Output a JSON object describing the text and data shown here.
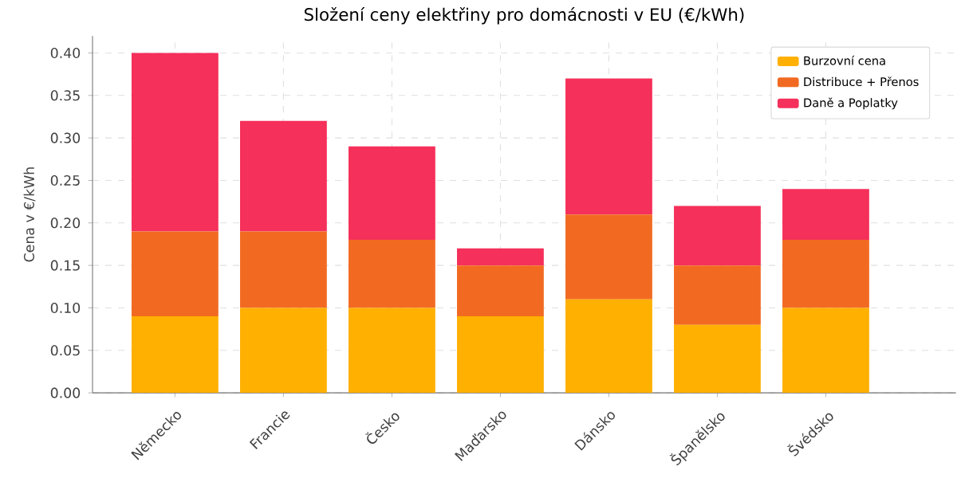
{
  "chart_data": {
    "type": "bar",
    "stacked": true,
    "title": "Složení ceny elektřiny pro domácnosti v EU (€/kWh)",
    "ylabel": "Cena v €/kWh",
    "categories": [
      "Německo",
      "Francie",
      "Česko",
      "Maďarsko",
      "Dánsko",
      "Španělsko",
      "Švédsko"
    ],
    "series": [
      {
        "name": "Burzovní cena",
        "color": "#ffb000",
        "values": [
          0.09,
          0.1,
          0.1,
          0.09,
          0.11,
          0.08,
          0.1
        ]
      },
      {
        "name": "Distribuce + Přenos",
        "color": "#f26a22",
        "values": [
          0.1,
          0.09,
          0.08,
          0.06,
          0.1,
          0.07,
          0.08
        ]
      },
      {
        "name": "Daně a Poplatky",
        "color": "#f5305a",
        "values": [
          0.21,
          0.13,
          0.11,
          0.02,
          0.16,
          0.07,
          0.06
        ]
      }
    ],
    "ylim": [
      0,
      0.42
    ],
    "yticks": [
      {
        "value": 0,
        "label": "0.00"
      },
      {
        "value": 0.05,
        "label": "0.05"
      },
      {
        "value": 0.1,
        "label": "0.10"
      },
      {
        "value": 0.15,
        "label": "0.15"
      },
      {
        "value": 0.2,
        "label": "0.20"
      },
      {
        "value": 0.25,
        "label": "0.25"
      },
      {
        "value": 0.3,
        "label": "0.30"
      },
      {
        "value": 0.35,
        "label": "0.35"
      },
      {
        "value": 0.4,
        "label": "0.40"
      }
    ],
    "grid": true,
    "legend": "top right"
  }
}
